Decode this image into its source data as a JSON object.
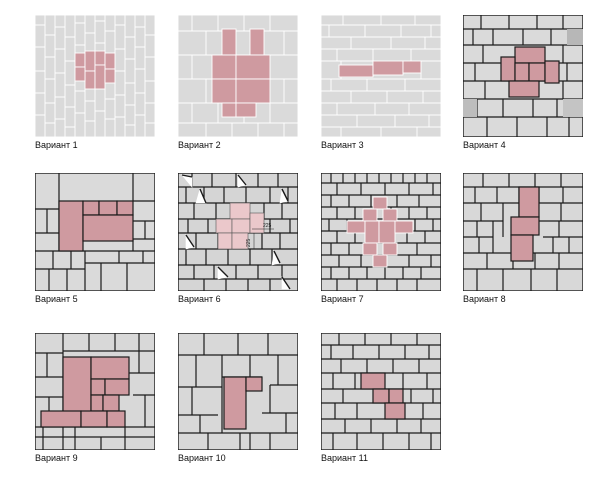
{
  "variants": [
    {
      "label": "Вариант 1"
    },
    {
      "label": "Вариант 2"
    },
    {
      "label": "Вариант 3"
    },
    {
      "label": "Вариант 4"
    },
    {
      "label": "Вариант 5"
    },
    {
      "label": "Вариант 6",
      "dims": [
        "225",
        "225"
      ]
    },
    {
      "label": "Вариант 7"
    },
    {
      "label": "Вариант 8"
    },
    {
      "label": "Вариант 9"
    },
    {
      "label": "Вариант 10"
    },
    {
      "label": "Вариант 11"
    }
  ],
  "colors": {
    "tile": "#dadada",
    "accent": "#cf9aa0",
    "grout_light": "#ffffff",
    "grout_dark": "#1b1b1b"
  }
}
